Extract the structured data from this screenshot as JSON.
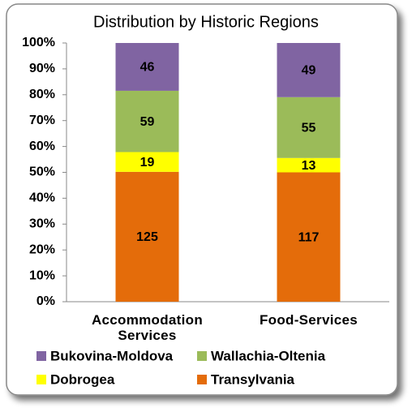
{
  "chart_data": {
    "type": "bar",
    "stacked": "percent",
    "title": "Distribution by Historic Regions",
    "categories": [
      "Accommodation Services",
      "Food-Services"
    ],
    "series": [
      {
        "name": "Transylvania",
        "color": "#e46c0a",
        "values": [
          125,
          117
        ]
      },
      {
        "name": "Dobrogea",
        "color": "#ffff00",
        "values": [
          19,
          13
        ]
      },
      {
        "name": "Wallachia-Oltenia",
        "color": "#9bbb59",
        "values": [
          59,
          55
        ]
      },
      {
        "name": "Bukovina-Moldova",
        "color": "#8064a2",
        "values": [
          46,
          49
        ]
      }
    ],
    "ylim": [
      0,
      100
    ],
    "yticks": [
      {
        "value": 0,
        "label": "0%"
      },
      {
        "value": 10,
        "label": "10%"
      },
      {
        "value": 20,
        "label": "20%"
      },
      {
        "value": 30,
        "label": "30%"
      },
      {
        "value": 40,
        "label": "40%"
      },
      {
        "value": 50,
        "label": "50%"
      },
      {
        "value": 60,
        "label": "60%"
      },
      {
        "value": 70,
        "label": "70%"
      },
      {
        "value": 80,
        "label": "80%"
      },
      {
        "value": 90,
        "label": "90%"
      },
      {
        "value": 100,
        "label": "100%"
      }
    ],
    "grid": false,
    "legend": "bottom"
  }
}
